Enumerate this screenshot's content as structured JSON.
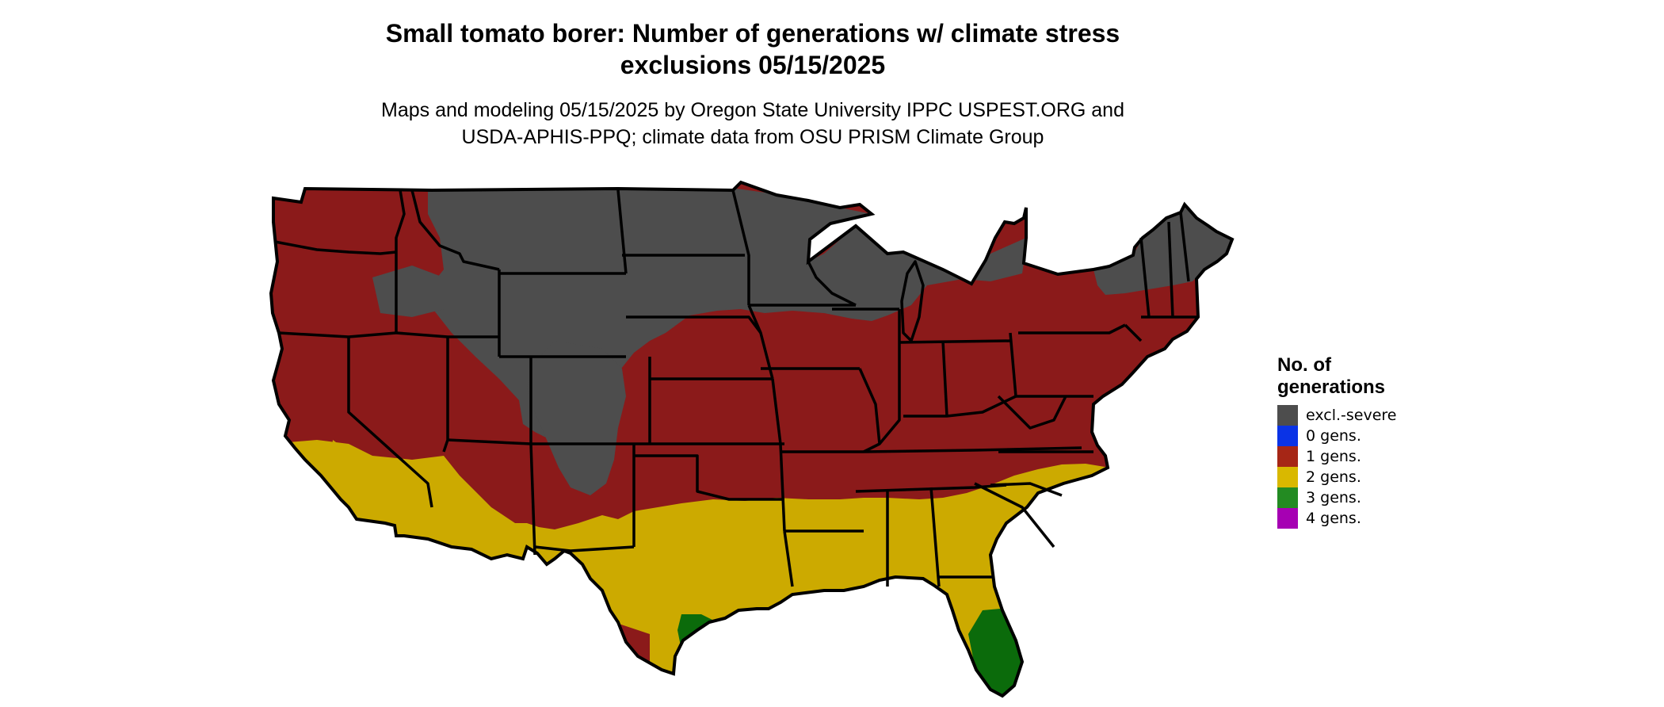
{
  "title": {
    "line1": "Small tomato borer: Number of generations w/ climate stress",
    "line2": "exclusions 05/15/2025"
  },
  "subtitle": {
    "line1": "Maps and modeling 05/15/2025 by Oregon State University IPPC USPEST.ORG and",
    "line2": "USDA-APHIS-PPQ; climate data from OSU PRISM Climate Group"
  },
  "legend": {
    "title_line1": "No. of",
    "title_line2": "generations",
    "items": [
      {
        "label": "excl.-severe",
        "color": "#4d4d4d"
      },
      {
        "label": "0 gens.",
        "color": "#0a33e6"
      },
      {
        "label": "1 gens.",
        "color": "#a62616"
      },
      {
        "label": "2 gens.",
        "color": "#d9b800"
      },
      {
        "label": "3 gens.",
        "color": "#238b22"
      },
      {
        "label": "4 gens.",
        "color": "#a600b3"
      }
    ]
  },
  "map_colors": {
    "excluded": "#4d4d4d",
    "one_gen": "#8b1a1a",
    "two_gen": "#ccaa00",
    "three_gen": "#0b6b0b",
    "state_border": "#000000"
  }
}
